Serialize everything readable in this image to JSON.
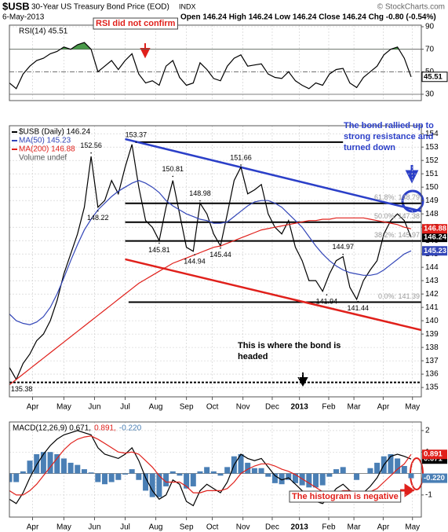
{
  "header": {
    "symbol": "$USB",
    "title": "30-Year US Treasury Bond Price (EOD)",
    "exchange": "INDX",
    "credit": "© StockCharts.com",
    "date": "6-May-2013",
    "quote": "Open 146.24 High 146.24 Low 146.24 Close 146.24 Chg -0.80 (-0.54%)"
  },
  "chart_data": [
    {
      "type": "line",
      "xlim": [
        0,
        60.5
      ],
      "ylim": [
        24.4,
        91.4
      ],
      "yticks": [
        30,
        50,
        70,
        90
      ],
      "fill_above": 70,
      "series": [
        {
          "label": "RSI(14) 45.51",
          "color": "#000000",
          "tag": "45.51",
          "values": [
            40,
            35,
            48,
            55,
            60,
            62,
            66,
            68,
            72,
            70,
            74,
            76,
            70,
            50,
            55,
            60,
            52,
            60,
            66,
            48,
            40,
            42,
            38,
            55,
            60,
            45,
            38,
            40,
            58,
            52,
            44,
            42,
            55,
            62,
            65,
            55,
            56,
            57,
            48,
            45,
            44,
            50,
            42,
            38,
            35,
            40,
            38,
            48,
            52,
            53,
            40,
            36,
            45,
            50,
            55,
            65,
            70,
            72,
            62,
            45.51
          ]
        }
      ],
      "annotations": [
        {
          "lines": [
            "RSI did not confirm"
          ],
          "color": "#e0201b"
        }
      ]
    },
    {
      "type": "line",
      "xlim": [
        0,
        60.5
      ],
      "ylim": [
        134.3,
        154.6
      ],
      "yticks": [
        135,
        136,
        137,
        138,
        139,
        140,
        141,
        142,
        143,
        144,
        145,
        146,
        147,
        148,
        149,
        150,
        151,
        152,
        153,
        154
      ],
      "xticks": [
        {
          "value": 3.4,
          "label": "Apr"
        },
        {
          "value": 8,
          "label": "May"
        },
        {
          "value": 12.5,
          "label": "Jun"
        },
        {
          "value": 17,
          "label": "Jul"
        },
        {
          "value": 21.5,
          "label": "Aug"
        },
        {
          "value": 26,
          "label": "Sep"
        },
        {
          "value": 29.8,
          "label": "Oct"
        },
        {
          "value": 34.3,
          "label": "Nov"
        },
        {
          "value": 38.6,
          "label": "Dec"
        },
        {
          "value": 42.6,
          "label": "2013"
        },
        {
          "value": 46.9,
          "label": "Feb"
        },
        {
          "value": 50.6,
          "label": "Mar"
        },
        {
          "value": 54.9,
          "label": "Apr"
        },
        {
          "value": 59.2,
          "label": "May"
        }
      ],
      "series": [
        {
          "label": "$USB (Daily) 146.24",
          "color": "#000000",
          "tag": "146.24",
          "values": [
            136.5,
            135.6,
            136.8,
            137.5,
            138.5,
            139.0,
            140.0,
            141.5,
            143.5,
            145.0,
            146.5,
            148.5,
            152.3,
            148.5,
            149.0,
            150.5,
            149.5,
            151.5,
            153.2,
            150.0,
            147.5,
            147.0,
            146.0,
            148.5,
            150.5,
            148.0,
            145.5,
            145.2,
            148.8,
            148.0,
            146.5,
            145.6,
            148.0,
            150.5,
            151.5,
            149.5,
            149.8,
            150.2,
            148.0,
            147.0,
            146.5,
            147.5,
            145.5,
            144.5,
            143.0,
            143.0,
            142.2,
            143.5,
            144.5,
            144.8,
            142.5,
            141.6,
            143.0,
            143.8,
            144.5,
            146.5,
            147.5,
            148.0,
            147.5,
            146.24
          ]
        },
        {
          "label": "MA(50) 145.23",
          "color": "#3346b8",
          "tag": "145.23",
          "values": [
            140.5,
            140.0,
            139.8,
            139.7,
            139.9,
            140.3,
            141.0,
            142.0,
            143.2,
            144.5,
            145.7,
            146.8,
            147.6,
            148.3,
            148.8,
            149.3,
            149.7,
            150.0,
            150.3,
            150.5,
            150.3,
            150.0,
            149.6,
            149.0,
            148.6,
            148.3,
            148.0,
            147.8,
            147.6,
            147.5,
            147.3,
            147.3,
            147.4,
            147.8,
            148.2,
            148.6,
            148.9,
            149.0,
            149.0,
            148.8,
            148.5,
            148.0,
            147.5,
            147.0,
            146.3,
            145.6,
            145.0,
            144.5,
            144.1,
            143.8,
            143.6,
            143.5,
            143.4,
            143.4,
            143.5,
            143.8,
            144.2,
            144.6,
            145.0,
            145.23
          ]
        },
        {
          "label": "MA(200) 146.88",
          "color": "#e0201b",
          "tag": "146.88",
          "values": [
            135.2,
            135.6,
            136.0,
            136.4,
            136.8,
            137.2,
            137.6,
            138.0,
            138.4,
            138.8,
            139.2,
            139.6,
            140.0,
            140.4,
            140.8,
            141.2,
            141.6,
            142.0,
            142.4,
            142.8,
            143.1,
            143.4,
            143.7,
            144.0,
            144.3,
            144.5,
            144.7,
            144.9,
            145.1,
            145.3,
            145.5,
            145.6,
            145.8,
            146.0,
            146.2,
            146.4,
            146.6,
            146.8,
            146.9,
            147.0,
            147.1,
            147.2,
            147.3,
            147.4,
            147.5,
            147.5,
            147.6,
            147.6,
            147.7,
            147.7,
            147.7,
            147.7,
            147.7,
            147.6,
            147.5,
            147.4,
            147.3,
            147.2,
            147.0,
            146.88
          ]
        }
      ],
      "volume_label": "Volume undef",
      "levels": [
        {
          "value": 153.37,
          "x": [
            18.5,
            49
          ]
        },
        {
          "value": 148.79,
          "x": [
            17,
            60.5
          ],
          "label": "61.8%: 148.79"
        },
        {
          "value": 147.38,
          "x": [
            17,
            60.5
          ],
          "label": "50.0%: 147.38"
        },
        {
          "value": 145.97,
          "x": [
            17,
            60.5
          ],
          "label": "38.2%: 145.97"
        },
        {
          "value": 141.39,
          "x": [
            17.5,
            60.5
          ],
          "label": "0.0%: 141.39"
        },
        {
          "value": 135.38,
          "x": [
            0,
            60.5
          ],
          "dashed": true
        }
      ],
      "trendlines": [
        {
          "x": [
            17,
            60.5
          ],
          "y": [
            153.6,
            148.2
          ],
          "color": "#2b3fc8"
        },
        {
          "x": [
            17,
            60.5
          ],
          "y": [
            144.6,
            139.3
          ],
          "color": "#e0201b"
        }
      ],
      "highs": [
        {
          "x": 12,
          "y": 152.56
        },
        {
          "x": 18.6,
          "y": 153.37
        },
        {
          "x": 24,
          "y": 150.81
        },
        {
          "x": 28,
          "y": 148.98
        },
        {
          "x": 34,
          "y": 151.66
        },
        {
          "x": 49,
          "y": 144.97
        }
      ],
      "lows": [
        {
          "x": 13,
          "y": 148.22
        },
        {
          "x": 22,
          "y": 145.81
        },
        {
          "x": 27.2,
          "y": 144.94
        },
        {
          "x": 31,
          "y": 145.44
        },
        {
          "x": 46.6,
          "y": 141.94
        },
        {
          "x": 51.2,
          "y": 141.44
        },
        {
          "x": 1.8,
          "y": 135.38
        }
      ],
      "annotations": [
        {
          "lines": [
            "The bond rallied up to",
            "strong resistance and",
            "turned down"
          ],
          "color": "#2b3fc8"
        },
        {
          "lines": [
            "This is where the bond is",
            "headed"
          ],
          "color": "#000000"
        }
      ]
    },
    {
      "type": "macd",
      "xlim": [
        0,
        60.5
      ],
      "ylim": [
        -2.03,
        2.4
      ],
      "yticks": [
        -1,
        1,
        2
      ],
      "xticks": [
        {
          "value": 3.4,
          "label": "Apr"
        },
        {
          "value": 8,
          "label": "May"
        },
        {
          "value": 12.5,
          "label": "Jun"
        },
        {
          "value": 17,
          "label": "Jul"
        },
        {
          "value": 21.5,
          "label": "Aug"
        },
        {
          "value": 26,
          "label": "Sep"
        },
        {
          "value": 29.8,
          "label": "Oct"
        },
        {
          "value": 34.3,
          "label": "Nov"
        },
        {
          "value": 38.6,
          "label": "Dec"
        },
        {
          "value": 42.6,
          "label": "2013"
        },
        {
          "value": 46.9,
          "label": "Feb"
        },
        {
          "value": 50.6,
          "label": "Mar"
        },
        {
          "value": 54.9,
          "label": "Apr"
        },
        {
          "value": 59.2,
          "label": "May"
        }
      ],
      "series": [
        {
          "label": "MACD(12,26,9) 0.671,",
          "color": "#000000",
          "tag": "0.671",
          "values": [
            -1.2,
            -1.4,
            -0.9,
            -0.2,
            0.4,
            0.9,
            1.3,
            1.6,
            1.8,
            1.9,
            2.0,
            1.9,
            1.8,
            1.2,
            0.9,
            0.8,
            0.7,
            0.9,
            1.2,
            0.6,
            -0.2,
            -0.8,
            -1.2,
            -1.0,
            -0.3,
            -0.5,
            -1.3,
            -1.5,
            -0.8,
            -0.5,
            -0.7,
            -0.9,
            -0.4,
            0.4,
            0.9,
            0.7,
            0.6,
            0.7,
            0.3,
            -0.1,
            -0.3,
            -0.2,
            -0.5,
            -0.8,
            -1.1,
            -1.3,
            -1.4,
            -1.1,
            -0.7,
            -0.5,
            -0.8,
            -1.2,
            -0.9,
            -0.6,
            -0.2,
            0.4,
            0.8,
            0.9,
            0.8,
            0.671
          ]
        },
        {
          "label": "0.891,",
          "color": "#e0201b",
          "tag": "0.891",
          "values": [
            -0.8,
            -1.0,
            -1.0,
            -0.8,
            -0.5,
            -0.1,
            0.3,
            0.7,
            1.1,
            1.4,
            1.6,
            1.7,
            1.75,
            1.6,
            1.4,
            1.2,
            1.0,
            0.95,
            1.0,
            0.9,
            0.6,
            0.3,
            -0.1,
            -0.4,
            -0.4,
            -0.4,
            -0.6,
            -0.9,
            -0.9,
            -0.8,
            -0.8,
            -0.8,
            -0.7,
            -0.4,
            0.0,
            0.2,
            0.35,
            0.45,
            0.45,
            0.35,
            0.2,
            0.1,
            -0.05,
            -0.25,
            -0.45,
            -0.65,
            -0.85,
            -0.95,
            -0.9,
            -0.8,
            -0.8,
            -0.9,
            -0.9,
            -0.85,
            -0.7,
            -0.4,
            -0.1,
            0.2,
            0.45,
            0.891
          ]
        },
        {
          "label": "-0.220",
          "color": "#4a7fb5",
          "tag": "-0.220",
          "histogram": true,
          "values": [
            -0.4,
            -0.4,
            0.1,
            0.6,
            0.9,
            1.0,
            1.0,
            0.9,
            0.7,
            0.5,
            0.4,
            0.2,
            0.05,
            -0.4,
            -0.5,
            -0.4,
            -0.3,
            -0.05,
            0.2,
            -0.3,
            -0.8,
            -1.1,
            -1.1,
            -0.6,
            0.1,
            -0.1,
            -0.7,
            -0.6,
            0.1,
            0.3,
            0.1,
            -0.1,
            0.3,
            0.8,
            0.9,
            0.5,
            0.25,
            0.25,
            -0.15,
            -0.45,
            -0.5,
            -0.3,
            -0.45,
            -0.55,
            -0.65,
            -0.65,
            -0.55,
            -0.15,
            0.2,
            0.3,
            0,
            -0.3,
            0,
            0.25,
            0.5,
            0.8,
            0.9,
            0.7,
            0.35,
            -0.22
          ]
        }
      ],
      "annotations": [
        {
          "lines": [
            "The histogram is negative"
          ],
          "color": "#e0201b"
        }
      ]
    }
  ]
}
